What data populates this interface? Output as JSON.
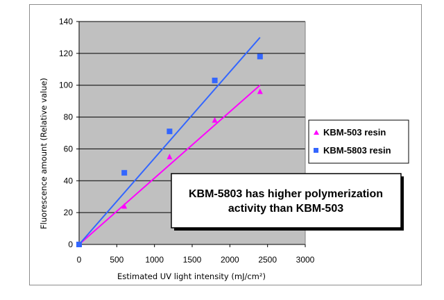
{
  "chart_data": {
    "type": "scatter",
    "xlabel": "Estimated UV light intensity (mJ/cm²)",
    "ylabel": "Fluorescence amount  (Relative value)",
    "xlim": [
      0,
      3000
    ],
    "ylim": [
      0,
      140
    ],
    "x_ticks": [
      0,
      500,
      1000,
      1500,
      2000,
      2500,
      3000
    ],
    "y_ticks": [
      0,
      20,
      40,
      60,
      80,
      100,
      120,
      140
    ],
    "grid": "horizontal",
    "plot_background": "#c0c0c0",
    "legend_position": "right",
    "series": [
      {
        "name": "KBM-503 resin",
        "marker": "triangle",
        "color": "#ff00ff",
        "points": [
          [
            0,
            0
          ],
          [
            600,
            24
          ],
          [
            1200,
            55
          ],
          [
            1800,
            78
          ],
          [
            2400,
            96
          ]
        ],
        "trendline": [
          [
            0,
            0
          ],
          [
            2400,
            100
          ]
        ]
      },
      {
        "name": "KBM-5803 resin",
        "marker": "square",
        "color": "#3366ff",
        "points": [
          [
            0,
            0
          ],
          [
            600,
            45
          ],
          [
            1200,
            71
          ],
          [
            1800,
            103
          ],
          [
            2400,
            118
          ]
        ],
        "trendline": [
          [
            0,
            0
          ],
          [
            2400,
            130
          ]
        ]
      }
    ],
    "annotation": {
      "line1": "KBM-5803 has higher polymerization",
      "line2": "activity than KBM-503"
    }
  }
}
